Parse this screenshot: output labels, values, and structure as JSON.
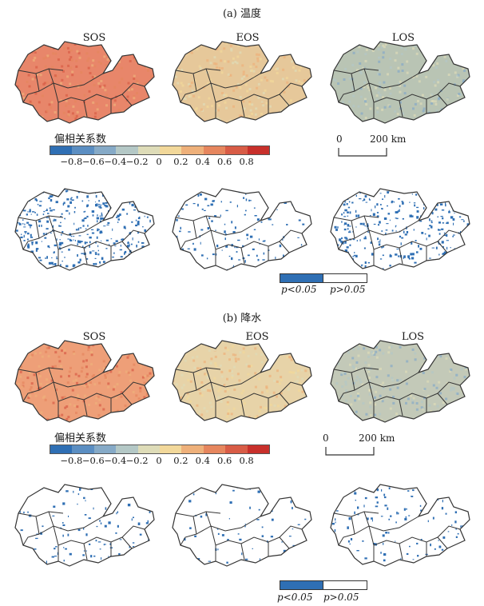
{
  "sections": [
    {
      "title": "(a) 温度",
      "panels": [
        "SOS",
        "EOS",
        "LOS"
      ],
      "legend_title": "偏相关系数",
      "scale": {
        "zero": "0",
        "end": "200 km"
      },
      "significance": {
        "low": "p<0.05",
        "high": "p>0.05"
      },
      "fills": {
        "SOS": "#e8866a",
        "EOS": "#e6c89a",
        "LOS": "#b9c4b4"
      },
      "sig_density": {
        "SOS": 0.55,
        "EOS": 0.2,
        "LOS": 0.42
      }
    },
    {
      "title": "(b) 降水",
      "panels": [
        "SOS",
        "EOS",
        "LOS"
      ],
      "legend_title": "偏相关系数",
      "scale": {
        "zero": "0",
        "end": "200 km"
      },
      "significance": {
        "low": "p<0.05",
        "high": "p>0.05"
      },
      "fills": {
        "SOS": "#ee9f78",
        "EOS": "#e7d3a8",
        "LOS": "#c3c9b8"
      },
      "sig_density": {
        "SOS": 0.14,
        "EOS": 0.09,
        "LOS": 0.16
      }
    }
  ],
  "colorbar": {
    "colors": [
      "#2f6fb4",
      "#5b8ec2",
      "#86aac7",
      "#b4c8c6",
      "#dedcb8",
      "#f2d89a",
      "#eeb07a",
      "#e6865e",
      "#d85c46",
      "#c8302b"
    ],
    "ticks": [
      "−0.8",
      "−0.6",
      "−0.4",
      "−0.2",
      "0",
      "0.2",
      "0.4",
      "0.6",
      "0.8"
    ]
  },
  "colors": {
    "significant": "#2f6fb4",
    "outline": "#333333"
  }
}
